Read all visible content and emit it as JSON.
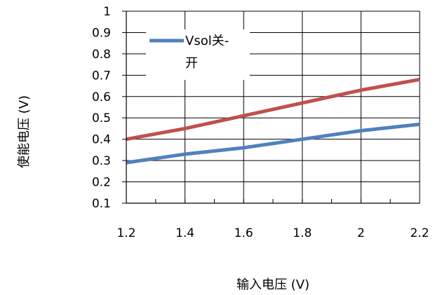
{
  "chart_data": {
    "type": "line",
    "xlabel": "输入电压 (V)",
    "ylabel": "使能电压 (V)",
    "xlim": [
      1.2,
      2.2
    ],
    "ylim": [
      0.1,
      1.0
    ],
    "x_ticks": [
      "1.2",
      "1.4",
      "1.6",
      "1.8",
      "2",
      "2.2"
    ],
    "y_ticks": [
      "0.1",
      "0.2",
      "0.3",
      "0.4",
      "0.5",
      "0.6",
      "0.7",
      "0.8",
      "0.9",
      "1"
    ],
    "grid": true,
    "legend_position": "top-left",
    "series": [
      {
        "name": "Vsol关-开",
        "color": "#4F81BD",
        "x": [
          1.2,
          1.4,
          1.6,
          1.8,
          2.0,
          2.2
        ],
        "y": [
          0.29,
          0.33,
          0.36,
          0.4,
          0.44,
          0.47
        ]
      },
      {
        "color": "#C0504D",
        "x": [
          1.2,
          1.4,
          1.6,
          1.8,
          2.0,
          2.2
        ],
        "y": [
          0.4,
          0.45,
          0.51,
          0.57,
          0.63,
          0.68
        ]
      }
    ]
  }
}
